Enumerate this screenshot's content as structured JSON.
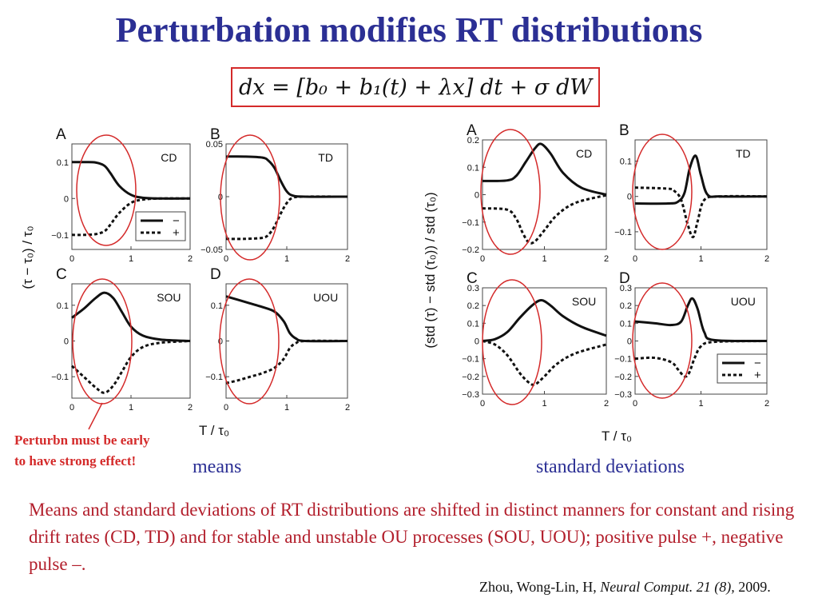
{
  "title": "Perturbation modifies RT distributions",
  "equation": "dx = [b₀ + b₁(t) + λx] dt + σ dW",
  "chart_data": [
    {
      "type": "line",
      "group": "means",
      "panel_letter": "A",
      "label": "CD",
      "xlim": [
        0,
        2
      ],
      "ylim": [
        -0.14,
        0.15
      ],
      "xticks": [
        0,
        1,
        2
      ],
      "yticks": [
        0.1,
        0,
        -0.1
      ],
      "ytick_labels": [
        "0.1",
        "0",
        "−0.1"
      ],
      "series": [
        {
          "name": "−",
          "x": [
            0,
            0.2,
            0.4,
            0.55,
            0.65,
            0.8,
            1.0,
            1.2,
            1.5,
            2.0
          ],
          "y": [
            0.1,
            0.1,
            0.099,
            0.09,
            0.07,
            0.035,
            0.01,
            0.002,
            0.0,
            0.0
          ]
        },
        {
          "name": "+",
          "x": [
            0,
            0.2,
            0.4,
            0.55,
            0.65,
            0.8,
            1.0,
            1.2,
            1.5,
            2.0
          ],
          "y": [
            -0.1,
            -0.1,
            -0.098,
            -0.09,
            -0.072,
            -0.04,
            -0.012,
            -0.003,
            0.0,
            0.0
          ]
        }
      ]
    },
    {
      "type": "line",
      "group": "means",
      "panel_letter": "B",
      "label": "TD",
      "xlim": [
        0,
        2
      ],
      "ylim": [
        -0.05,
        0.05
      ],
      "xticks": [
        0,
        1,
        2
      ],
      "yticks": [
        0.05,
        0,
        -0.05
      ],
      "ytick_labels": [
        "0.05",
        "0",
        "−0.05"
      ],
      "series": [
        {
          "name": "−",
          "x": [
            0,
            0.3,
            0.6,
            0.7,
            0.8,
            0.9,
            1.0,
            1.1,
            1.3,
            2.0
          ],
          "y": [
            0.038,
            0.038,
            0.037,
            0.034,
            0.027,
            0.015,
            0.005,
            0.001,
            0.0,
            0.0
          ]
        },
        {
          "name": "+",
          "x": [
            0,
            0.3,
            0.6,
            0.7,
            0.8,
            0.9,
            1.0,
            1.1,
            1.3,
            2.0
          ],
          "y": [
            -0.04,
            -0.04,
            -0.039,
            -0.036,
            -0.028,
            -0.016,
            -0.006,
            -0.001,
            0.0,
            0.0
          ]
        }
      ]
    },
    {
      "type": "line",
      "group": "means",
      "panel_letter": "C",
      "label": "SOU",
      "xlim": [
        0,
        2
      ],
      "ylim": [
        -0.16,
        0.16
      ],
      "xticks": [
        0,
        1,
        2
      ],
      "yticks": [
        0.1,
        0,
        -0.1
      ],
      "ytick_labels": [
        "0.1",
        "0",
        "−0.1"
      ],
      "series": [
        {
          "name": "−",
          "x": [
            0,
            0.2,
            0.4,
            0.55,
            0.7,
            0.85,
            1.0,
            1.2,
            1.5,
            2.0
          ],
          "y": [
            0.065,
            0.09,
            0.12,
            0.135,
            0.12,
            0.08,
            0.04,
            0.015,
            0.004,
            0.0
          ]
        },
        {
          "name": "+",
          "x": [
            0,
            0.2,
            0.4,
            0.55,
            0.7,
            0.85,
            1.0,
            1.2,
            1.5,
            2.0
          ],
          "y": [
            -0.07,
            -0.1,
            -0.13,
            -0.145,
            -0.125,
            -0.085,
            -0.045,
            -0.017,
            -0.005,
            0.0
          ]
        }
      ]
    },
    {
      "type": "line",
      "group": "means",
      "panel_letter": "D",
      "label": "UOU",
      "xlim": [
        0,
        2
      ],
      "ylim": [
        -0.16,
        0.16
      ],
      "xticks": [
        0,
        1,
        2
      ],
      "yticks": [
        0.1,
        0,
        -0.1
      ],
      "ytick_labels": [
        "0.1",
        "0",
        "−0.1"
      ],
      "series": [
        {
          "name": "−",
          "x": [
            0,
            0.2,
            0.4,
            0.6,
            0.8,
            0.95,
            1.05,
            1.15,
            1.3,
            2.0
          ],
          "y": [
            0.125,
            0.115,
            0.105,
            0.095,
            0.082,
            0.055,
            0.022,
            0.007,
            0.0,
            0.0
          ]
        },
        {
          "name": "+",
          "x": [
            0,
            0.2,
            0.4,
            0.6,
            0.8,
            0.95,
            1.05,
            1.15,
            1.3,
            2.0
          ],
          "y": [
            -0.118,
            -0.11,
            -0.1,
            -0.09,
            -0.075,
            -0.05,
            -0.02,
            -0.006,
            0.0,
            0.0
          ]
        }
      ]
    },
    {
      "type": "line",
      "group": "standard deviations",
      "panel_letter": "A",
      "label": "CD",
      "xlim": [
        0,
        2
      ],
      "ylim": [
        -0.2,
        0.2
      ],
      "xticks": [
        0,
        1,
        2
      ],
      "yticks": [
        0.2,
        0.1,
        0,
        -0.1,
        -0.2
      ],
      "ytick_labels": [
        "0.2",
        "0.1",
        "0",
        "−0.1",
        "−0.2"
      ],
      "series": [
        {
          "name": "−",
          "x": [
            0,
            0.4,
            0.55,
            0.7,
            0.85,
            0.95,
            1.1,
            1.3,
            1.6,
            2.0
          ],
          "y": [
            0.05,
            0.052,
            0.07,
            0.12,
            0.17,
            0.185,
            0.15,
            0.08,
            0.025,
            0.0
          ]
        },
        {
          "name": "+",
          "x": [
            0,
            0.4,
            0.55,
            0.65,
            0.75,
            0.85,
            1.0,
            1.2,
            1.5,
            2.0
          ],
          "y": [
            -0.05,
            -0.055,
            -0.09,
            -0.14,
            -0.175,
            -0.17,
            -0.13,
            -0.075,
            -0.03,
            -0.002
          ]
        }
      ]
    },
    {
      "type": "line",
      "group": "standard deviations",
      "panel_letter": "B",
      "label": "TD",
      "xlim": [
        0,
        2
      ],
      "ylim": [
        -0.15,
        0.16
      ],
      "xticks": [
        0,
        1,
        2
      ],
      "yticks": [
        0.1,
        0,
        -0.1
      ],
      "ytick_labels": [
        "0.1",
        "0",
        "−0.1"
      ],
      "series": [
        {
          "name": "−",
          "x": [
            0,
            0.5,
            0.65,
            0.75,
            0.83,
            0.92,
            1.0,
            1.1,
            1.3,
            2.0
          ],
          "y": [
            -0.02,
            -0.02,
            -0.015,
            0.01,
            0.08,
            0.115,
            0.06,
            0.005,
            0.0,
            0.0
          ]
        },
        {
          "name": "+",
          "x": [
            0,
            0.5,
            0.6,
            0.7,
            0.8,
            0.88,
            0.95,
            1.05,
            1.3,
            2.0
          ],
          "y": [
            0.025,
            0.022,
            0.015,
            -0.01,
            -0.08,
            -0.115,
            -0.07,
            -0.01,
            0.0,
            0.0
          ]
        }
      ]
    },
    {
      "type": "line",
      "group": "standard deviations",
      "panel_letter": "C",
      "label": "SOU",
      "xlim": [
        0,
        2
      ],
      "ylim": [
        -0.3,
        0.3
      ],
      "xticks": [
        0,
        1,
        2
      ],
      "yticks": [
        0.3,
        0.2,
        0.1,
        0,
        -0.1,
        -0.2,
        -0.3
      ],
      "ytick_labels": [
        "0.3",
        "0.2",
        "0.1",
        "0",
        "−0.1",
        "−0.2",
        "−0.3"
      ],
      "series": [
        {
          "name": "−",
          "x": [
            0,
            0.2,
            0.4,
            0.6,
            0.8,
            0.95,
            1.1,
            1.3,
            1.6,
            2.0
          ],
          "y": [
            0.0,
            0.01,
            0.05,
            0.13,
            0.2,
            0.23,
            0.2,
            0.14,
            0.08,
            0.03
          ]
        },
        {
          "name": "+",
          "x": [
            0,
            0.2,
            0.4,
            0.6,
            0.75,
            0.85,
            1.0,
            1.2,
            1.5,
            2.0
          ],
          "y": [
            0.0,
            -0.02,
            -0.08,
            -0.18,
            -0.235,
            -0.245,
            -0.2,
            -0.13,
            -0.07,
            -0.02
          ]
        }
      ]
    },
    {
      "type": "line",
      "group": "standard deviations",
      "panel_letter": "D",
      "label": "UOU",
      "xlim": [
        0,
        2
      ],
      "ylim": [
        -0.3,
        0.3
      ],
      "xticks": [
        0,
        1,
        2
      ],
      "yticks": [
        0.3,
        0.2,
        0.1,
        0,
        -0.1,
        -0.2,
        -0.3
      ],
      "ytick_labels": [
        "0.3",
        "0.2",
        "0.1",
        "0",
        "−0.1",
        "−0.2",
        "−0.3"
      ],
      "series": [
        {
          "name": "−",
          "x": [
            0,
            0.3,
            0.55,
            0.7,
            0.8,
            0.87,
            0.95,
            1.05,
            1.2,
            2.0
          ],
          "y": [
            0.11,
            0.1,
            0.09,
            0.11,
            0.2,
            0.24,
            0.18,
            0.05,
            0.005,
            0.0
          ]
        },
        {
          "name": "+",
          "x": [
            0,
            0.3,
            0.55,
            0.65,
            0.75,
            0.82,
            0.9,
            1.0,
            1.2,
            2.0
          ],
          "y": [
            -0.1,
            -0.095,
            -0.12,
            -0.16,
            -0.2,
            -0.18,
            -0.1,
            -0.03,
            -0.005,
            0.0
          ]
        }
      ]
    }
  ],
  "means_ylabel": "(τ − τ₀) / τ₀",
  "stds_ylabel": "(std (τ) − std (τ₀)) / std (τ₀)",
  "xlabel": "T / τ₀",
  "annotation": [
    "Perturbn must be early",
    "to have strong effect!"
  ],
  "label_means": "means",
  "label_stds": "standard deviations",
  "caption_main": "Means and standard deviations of RT distributions are shifted in distinct manners for constant and rising drift rates (CD, TD) and for stable and unstable OU processes (SOU, UOU);",
  "caption_tail": " positive pulse +, negative pulse –.",
  "citation": {
    "authors": "Zhou, Wong-Lin, H, ",
    "journal": "Neural Comput. 21 (8),",
    "year": " 2009."
  },
  "colors": {
    "title": "#2b2f94",
    "highlight": "#d42a2a",
    "caption": "#b21e2b",
    "line": "#111111"
  }
}
